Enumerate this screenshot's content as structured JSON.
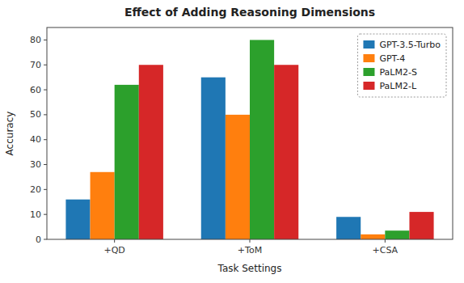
{
  "chart_data": {
    "type": "bar",
    "title": "Effect of Adding Reasoning Dimensions",
    "xlabel": "Task Settings",
    "ylabel": "Accuracy",
    "categories": [
      "+QD",
      "+ToM",
      "+CSA"
    ],
    "series": [
      {
        "name": "GPT-3.5-Turbo",
        "color": "#1f77b4",
        "values": [
          16,
          65,
          9
        ]
      },
      {
        "name": "GPT-4",
        "color": "#ff7f0e",
        "values": [
          27,
          50,
          2
        ]
      },
      {
        "name": "PaLM2-S",
        "color": "#2ca02c",
        "values": [
          62,
          80,
          3.5
        ]
      },
      {
        "name": "PaLM2-L",
        "color": "#d62728",
        "values": [
          70,
          70,
          11
        ]
      }
    ],
    "ylim": [
      0,
      85
    ],
    "yticks": [
      0,
      10,
      20,
      30,
      40,
      50,
      60,
      70,
      80
    ],
    "legend": "upper right",
    "grid": false
  }
}
